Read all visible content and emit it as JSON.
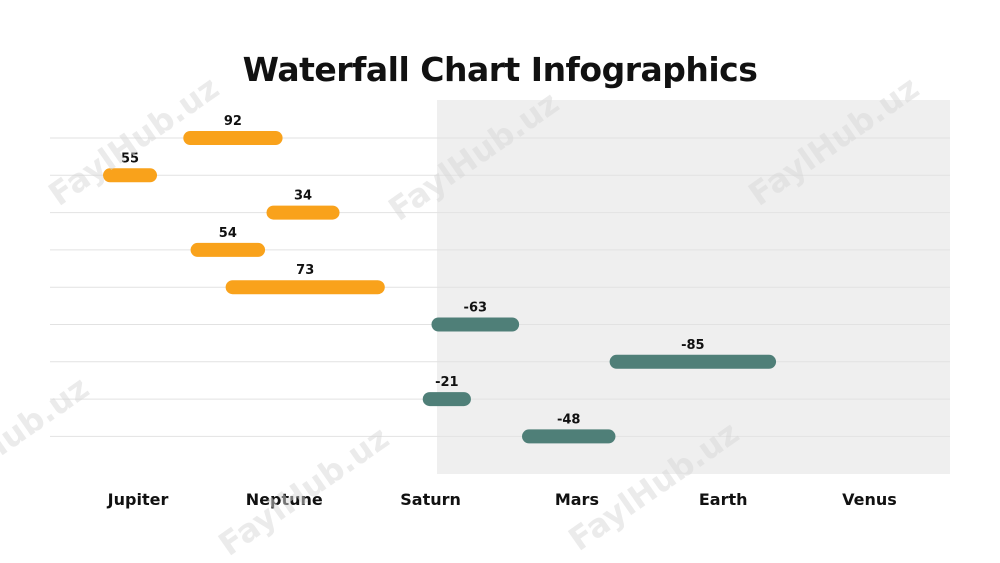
{
  "title": "Waterfall Chart Infographics",
  "watermark_text": "FaylHub.uz",
  "colors": {
    "positive": "#F9A21B",
    "negative": "#4F7F78",
    "panel": "#EFEFEF",
    "gridline": "#E2E2E2"
  },
  "chart_data": {
    "type": "bar",
    "subtype": "waterfall-horizontal",
    "title": "Waterfall Chart Infographics",
    "categories": [
      "Jupiter",
      "Neptune",
      "Saturn",
      "Mars",
      "Earth",
      "Venus"
    ],
    "bars": [
      {
        "label": "92",
        "start": 0.55,
        "end": 1.23,
        "sign": "positive"
      },
      {
        "label": "55",
        "start": 0.0,
        "end": 0.37,
        "sign": "positive"
      },
      {
        "label": "34",
        "start": 1.12,
        "end": 1.62,
        "sign": "positive"
      },
      {
        "label": "54",
        "start": 0.6,
        "end": 1.11,
        "sign": "positive"
      },
      {
        "label": "73",
        "start": 0.84,
        "end": 1.93,
        "sign": "positive"
      },
      {
        "label": "-63",
        "start": 2.25,
        "end": 2.85,
        "sign": "negative"
      },
      {
        "label": "-85",
        "start": 3.47,
        "end": 4.61,
        "sign": "negative"
      },
      {
        "label": "-21",
        "start": 2.19,
        "end": 2.52,
        "sign": "negative"
      },
      {
        "label": "-48",
        "start": 2.87,
        "end": 3.51,
        "sign": "negative"
      }
    ],
    "grid": true
  }
}
